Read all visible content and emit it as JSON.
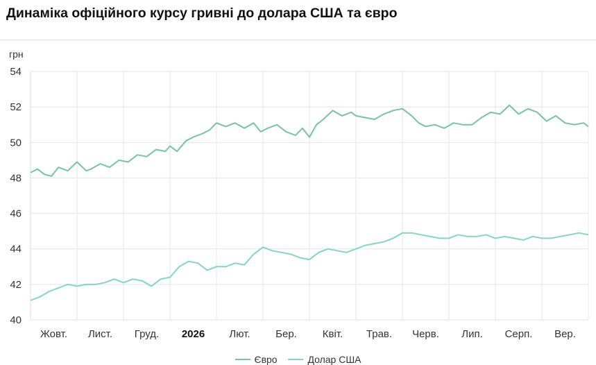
{
  "header": {
    "title": "Динаміка офіційного курсу гривні до долара США та євро"
  },
  "chart_data": {
    "type": "line",
    "title": "Динаміка офіційного курсу гривні до долара США та євро",
    "ylabel": "грн",
    "xlabel": "",
    "ylim": [
      40,
      54
    ],
    "yticks": [
      40,
      42,
      44,
      46,
      48,
      50,
      52,
      54
    ],
    "grid": true,
    "legend_position": "bottom",
    "categories": [
      "Жовт.",
      "Лист.",
      "Груд.",
      "2026",
      "Лют.",
      "Бер.",
      "Квіт.",
      "Трав.",
      "Черв.",
      "Лип.",
      "Серп.",
      "Вер."
    ],
    "bold_categories": [
      "2026"
    ],
    "x_start": 0,
    "x_end": 12,
    "series": [
      {
        "name": "Євро",
        "color": "#74c69d",
        "x": [
          0,
          0.15,
          0.3,
          0.45,
          0.6,
          0.8,
          1.0,
          1.2,
          1.3,
          1.5,
          1.7,
          1.9,
          2.1,
          2.3,
          2.5,
          2.7,
          2.9,
          3.0,
          3.15,
          3.35,
          3.5,
          3.7,
          3.85,
          4.0,
          4.2,
          4.4,
          4.6,
          4.8,
          4.95,
          5.1,
          5.3,
          5.5,
          5.7,
          5.85,
          6.0,
          6.15,
          6.3,
          6.5,
          6.7,
          6.9,
          7.0,
          7.2,
          7.4,
          7.6,
          7.8,
          8.0,
          8.2,
          8.35,
          8.5,
          8.7,
          8.9,
          9.1,
          9.3,
          9.5,
          9.7,
          9.9,
          10.1,
          10.3,
          10.5,
          10.7,
          10.9,
          11.1,
          11.3,
          11.5,
          11.7,
          11.9,
          12.0
        ],
        "values": [
          48.3,
          48.5,
          48.2,
          48.1,
          48.6,
          48.4,
          48.9,
          48.4,
          48.5,
          48.8,
          48.6,
          49.0,
          48.9,
          49.3,
          49.2,
          49.6,
          49.5,
          49.8,
          49.5,
          50.1,
          50.3,
          50.5,
          50.7,
          51.1,
          50.9,
          51.1,
          50.8,
          51.1,
          50.6,
          50.8,
          51.0,
          50.6,
          50.4,
          50.8,
          50.3,
          51.0,
          51.3,
          51.8,
          51.5,
          51.7,
          51.5,
          51.4,
          51.3,
          51.6,
          51.8,
          51.9,
          51.5,
          51.1,
          50.9,
          51.0,
          50.8,
          51.1,
          51.0,
          51.0,
          51.4,
          51.7,
          51.6,
          52.1,
          51.6,
          51.9,
          51.7,
          51.2,
          51.5,
          51.1,
          51.0,
          51.1,
          50.9
        ]
      },
      {
        "name": "Долар США",
        "color": "#7fd8c4",
        "x": [
          0,
          0.2,
          0.4,
          0.6,
          0.8,
          1.0,
          1.2,
          1.4,
          1.6,
          1.8,
          2.0,
          2.2,
          2.4,
          2.6,
          2.8,
          3.0,
          3.2,
          3.4,
          3.6,
          3.8,
          4.0,
          4.2,
          4.4,
          4.6,
          4.8,
          5.0,
          5.2,
          5.4,
          5.6,
          5.8,
          6.0,
          6.2,
          6.4,
          6.6,
          6.8,
          7.0,
          7.2,
          7.4,
          7.6,
          7.8,
          8.0,
          8.2,
          8.4,
          8.6,
          8.8,
          9.0,
          9.2,
          9.4,
          9.6,
          9.8,
          10.0,
          10.2,
          10.4,
          10.6,
          10.8,
          11.0,
          11.2,
          11.4,
          11.6,
          11.8,
          12.0
        ],
        "values": [
          41.1,
          41.3,
          41.6,
          41.8,
          42.0,
          41.9,
          42.0,
          42.0,
          42.1,
          42.3,
          42.1,
          42.3,
          42.2,
          41.9,
          42.3,
          42.4,
          43.0,
          43.3,
          43.2,
          42.8,
          43.0,
          43.0,
          43.2,
          43.1,
          43.7,
          44.1,
          43.9,
          43.8,
          43.7,
          43.5,
          43.4,
          43.8,
          44.0,
          43.9,
          43.8,
          44.0,
          44.2,
          44.3,
          44.4,
          44.6,
          44.9,
          44.9,
          44.8,
          44.7,
          44.6,
          44.6,
          44.8,
          44.7,
          44.7,
          44.8,
          44.6,
          44.7,
          44.6,
          44.5,
          44.7,
          44.6,
          44.6,
          44.7,
          44.8,
          44.9,
          44.8
        ]
      }
    ]
  }
}
